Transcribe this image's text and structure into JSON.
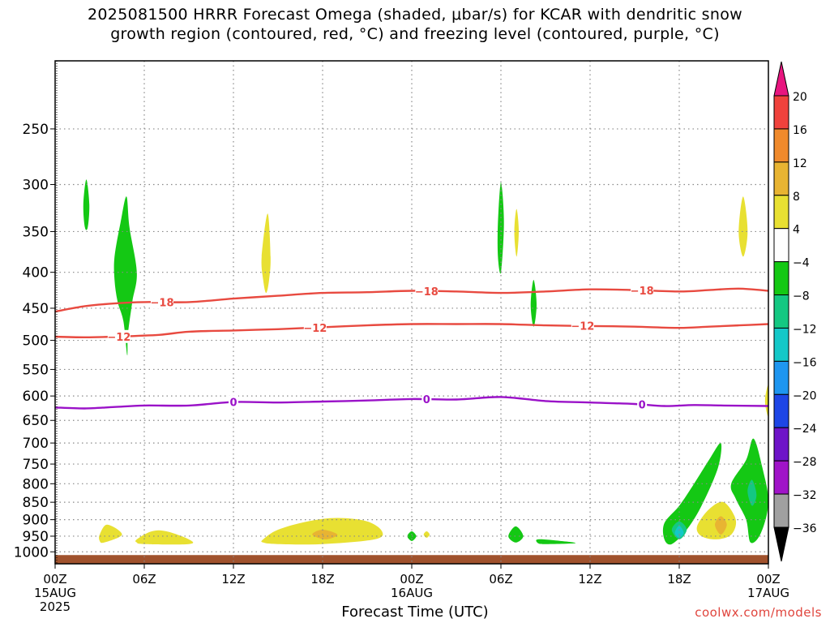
{
  "header": {
    "title_line1": "2025081500 HRRR Forecast Omega (shaded, μbar/s) for KCAR with dendritic snow",
    "title_line2": "growth region (contoured, red, °C) and freezing level (contoured, purple, °C)"
  },
  "footer": {
    "xlabel": "Forecast Time (UTC)",
    "credit": "coolwx.com/models"
  },
  "chart_data": {
    "type": "heatmap",
    "x_range_hours": [
      0,
      48
    ],
    "y_axis": {
      "scale": "pressure",
      "unit": "hPa",
      "ticks": [
        250,
        300,
        350,
        400,
        450,
        500,
        550,
        600,
        650,
        700,
        750,
        800,
        850,
        900,
        950,
        1000
      ],
      "range": [
        200,
        1040
      ]
    },
    "x_ticks": [
      {
        "hour": 0,
        "line1": "00Z",
        "line2": "15AUG",
        "line3": "2025"
      },
      {
        "hour": 6,
        "line1": "06Z",
        "line2": "",
        "line3": ""
      },
      {
        "hour": 12,
        "line1": "12Z",
        "line2": "",
        "line3": ""
      },
      {
        "hour": 18,
        "line1": "18Z",
        "line2": "",
        "line3": ""
      },
      {
        "hour": 24,
        "line1": "00Z",
        "line2": "16AUG",
        "line3": ""
      },
      {
        "hour": 30,
        "line1": "06Z",
        "line2": "",
        "line3": ""
      },
      {
        "hour": 36,
        "line1": "12Z",
        "line2": "",
        "line3": ""
      },
      {
        "hour": 42,
        "line1": "18Z",
        "line2": "",
        "line3": ""
      },
      {
        "hour": 48,
        "line1": "00Z",
        "line2": "17AUG",
        "line3": ""
      }
    ],
    "colorbar": {
      "labels": [
        "20",
        "16",
        "12",
        "8",
        "4",
        "−4",
        "−8",
        "−12",
        "−16",
        "−20",
        "−24",
        "−28",
        "−32",
        "−36"
      ],
      "top_arrow_color": "#e8157f",
      "bottom_arrow_color": "#000000",
      "bins": [
        {
          "from": 16,
          "to": 20,
          "color": "#f0423c"
        },
        {
          "from": 12,
          "to": 16,
          "color": "#f08a2c"
        },
        {
          "from": 8,
          "to": 12,
          "color": "#e8b432"
        },
        {
          "from": 4,
          "to": 8,
          "color": "#e8e032"
        },
        {
          "from": -4,
          "to": 4,
          "color": "#ffffff"
        },
        {
          "from": -8,
          "to": -4,
          "color": "#14c814"
        },
        {
          "from": -12,
          "to": -8,
          "color": "#14c882"
        },
        {
          "from": -16,
          "to": -12,
          "color": "#14c8c8"
        },
        {
          "from": -20,
          "to": -16,
          "color": "#1e96f0"
        },
        {
          "from": -24,
          "to": -20,
          "color": "#1e46e6"
        },
        {
          "from": -28,
          "to": -24,
          "color": "#6e14c8"
        },
        {
          "from": -32,
          "to": -28,
          "color": "#a014c8"
        },
        {
          "from": -36,
          "to": -32,
          "color": "#a0a0a0"
        }
      ]
    },
    "contours": [
      {
        "label": "−18",
        "color": "#e84a40",
        "label_hours": [
          7.2,
          25,
          39.5
        ],
        "points": [
          [
            0,
            455
          ],
          [
            2,
            447
          ],
          [
            4,
            443
          ],
          [
            6,
            441
          ],
          [
            9,
            441
          ],
          [
            12,
            436
          ],
          [
            15,
            432
          ],
          [
            18,
            428
          ],
          [
            21,
            427
          ],
          [
            24,
            425
          ],
          [
            27,
            426
          ],
          [
            30,
            428
          ],
          [
            33,
            426
          ],
          [
            36,
            423
          ],
          [
            39,
            424
          ],
          [
            42,
            426
          ],
          [
            44,
            424
          ],
          [
            46,
            422
          ],
          [
            48,
            425
          ]
        ]
      },
      {
        "label": "−12",
        "color": "#e84a40",
        "label_hours": [
          4.3,
          17.5,
          35.5
        ],
        "points": [
          [
            0,
            494
          ],
          [
            2,
            495
          ],
          [
            4,
            494
          ],
          [
            7,
            491
          ],
          [
            9,
            486
          ],
          [
            12,
            484
          ],
          [
            15,
            482
          ],
          [
            18,
            479
          ],
          [
            21,
            476
          ],
          [
            24,
            474
          ],
          [
            27,
            474
          ],
          [
            30,
            474
          ],
          [
            33,
            476
          ],
          [
            36,
            477
          ],
          [
            39,
            478
          ],
          [
            42,
            480
          ],
          [
            44,
            478
          ],
          [
            46,
            476
          ],
          [
            48,
            474
          ]
        ]
      },
      {
        "label": "0",
        "color": "#9a12c8",
        "label_hours": [
          12,
          25,
          39.5
        ],
        "points": [
          [
            0,
            623
          ],
          [
            2,
            625
          ],
          [
            4,
            622
          ],
          [
            6,
            619
          ],
          [
            9,
            619
          ],
          [
            12,
            612
          ],
          [
            15,
            613
          ],
          [
            18,
            611
          ],
          [
            21,
            609
          ],
          [
            24,
            606
          ],
          [
            27,
            607
          ],
          [
            30,
            602
          ],
          [
            33,
            610
          ],
          [
            36,
            613
          ],
          [
            39,
            616
          ],
          [
            41,
            620
          ],
          [
            43,
            618
          ],
          [
            45,
            619
          ],
          [
            48,
            620
          ]
        ]
      }
    ],
    "omega_regions": [
      {
        "value": -6,
        "color": "#14c814",
        "points": [
          [
            1.9,
            320
          ],
          [
            2.1,
            295
          ],
          [
            2.3,
            320
          ],
          [
            2.2,
            345
          ],
          [
            2.0,
            345
          ]
        ]
      },
      {
        "value": -6,
        "color": "#14c814",
        "points": [
          [
            4.0,
            380
          ],
          [
            4.4,
            340
          ],
          [
            4.8,
            312
          ],
          [
            5.0,
            345
          ],
          [
            5.5,
            400
          ],
          [
            5.2,
            440
          ],
          [
            4.9,
            490
          ],
          [
            4.85,
            525
          ],
          [
            4.6,
            470
          ],
          [
            4.2,
            440
          ],
          [
            4.0,
            410
          ]
        ]
      },
      {
        "value": 6,
        "color": "#e8e032",
        "points": [
          [
            13.9,
            380
          ],
          [
            14.3,
            330
          ],
          [
            14.5,
            380
          ],
          [
            14.4,
            410
          ],
          [
            14.2,
            428
          ],
          [
            14.0,
            410
          ]
        ]
      },
      {
        "value": -6,
        "color": "#14c814",
        "points": [
          [
            29.8,
            340
          ],
          [
            30.0,
            298
          ],
          [
            30.2,
            340
          ],
          [
            30.0,
            400
          ],
          [
            29.8,
            380
          ]
        ]
      },
      {
        "value": 6,
        "color": "#e8e032",
        "points": [
          [
            30.9,
            350
          ],
          [
            31.05,
            325
          ],
          [
            31.2,
            350
          ],
          [
            31.05,
            380
          ]
        ]
      },
      {
        "value": -6,
        "color": "#14c814",
        "points": [
          [
            32.0,
            445
          ],
          [
            32.2,
            410
          ],
          [
            32.4,
            445
          ],
          [
            32.2,
            478
          ]
        ]
      },
      {
        "value": 6,
        "color": "#e8e032",
        "points": [
          [
            46.0,
            350
          ],
          [
            46.3,
            312
          ],
          [
            46.6,
            350
          ],
          [
            46.3,
            380
          ]
        ]
      },
      {
        "value": 6,
        "color": "#e8e032",
        "points": [
          [
            47.8,
            600
          ],
          [
            48.0,
            580
          ],
          [
            48.0,
            640
          ],
          [
            47.8,
            620
          ]
        ]
      },
      {
        "value": 6,
        "color": "#e8e032",
        "points": [
          [
            3.0,
            945
          ],
          [
            3.5,
            915
          ],
          [
            4.5,
            945
          ],
          [
            3.3,
            970
          ],
          [
            3.0,
            965
          ]
        ]
      },
      {
        "value": 6,
        "color": "#e8e032",
        "points": [
          [
            5.5,
            960
          ],
          [
            6.5,
            935
          ],
          [
            7.5,
            935
          ],
          [
            9,
            960
          ],
          [
            9,
            975
          ],
          [
            6,
            975
          ],
          [
            5.5,
            970
          ]
        ]
      },
      {
        "value": 6,
        "color": "#e8e032",
        "points": [
          [
            14,
            960
          ],
          [
            15,
            930
          ],
          [
            17,
            905
          ],
          [
            19,
            895
          ],
          [
            21,
            905
          ],
          [
            22,
            935
          ],
          [
            21.5,
            960
          ],
          [
            18,
            975
          ],
          [
            15,
            975
          ],
          [
            14,
            970
          ]
        ]
      },
      {
        "value": 10,
        "color": "#e8b432",
        "points": [
          [
            17.3,
            945
          ],
          [
            18.0,
            930
          ],
          [
            19.0,
            945
          ],
          [
            18.2,
            960
          ]
        ]
      },
      {
        "value": -6,
        "color": "#14c814",
        "points": [
          [
            23.7,
            950
          ],
          [
            24.0,
            935
          ],
          [
            24.3,
            950
          ],
          [
            24.0,
            965
          ]
        ]
      },
      {
        "value": 6,
        "color": "#e8e032",
        "points": [
          [
            24.8,
            945
          ],
          [
            25.0,
            935
          ],
          [
            25.2,
            945
          ],
          [
            25.0,
            955
          ]
        ]
      },
      {
        "value": -6,
        "color": "#14c814",
        "points": [
          [
            30.5,
            950
          ],
          [
            31.0,
            920
          ],
          [
            31.5,
            950
          ],
          [
            31.0,
            970
          ]
        ]
      },
      {
        "value": -6,
        "color": "#14c814",
        "points": [
          [
            32.5,
            960
          ],
          [
            34,
            965
          ],
          [
            35,
            972
          ],
          [
            33,
            975
          ],
          [
            32.5,
            972
          ]
        ]
      },
      {
        "value": -6,
        "color": "#14c814",
        "points": [
          [
            41,
            910
          ],
          [
            42,
            860
          ],
          [
            43,
            800
          ],
          [
            44,
            740
          ],
          [
            44.8,
            700
          ],
          [
            44.6,
            760
          ],
          [
            43.5,
            860
          ],
          [
            42.5,
            930
          ],
          [
            41.5,
            975
          ],
          [
            41,
            960
          ]
        ]
      },
      {
        "value": -10,
        "color": "#14c882",
        "points": [
          [
            41.5,
            930
          ],
          [
            42,
            905
          ],
          [
            42.5,
            930
          ],
          [
            42,
            960
          ]
        ]
      },
      {
        "value": -14,
        "color": "#14c8c8",
        "points": [
          [
            41.7,
            940
          ],
          [
            42,
            918
          ],
          [
            42.3,
            940
          ],
          [
            42,
            955
          ]
        ]
      },
      {
        "value": 6,
        "color": "#e8e032",
        "points": [
          [
            43.2,
            920
          ],
          [
            44,
            870
          ],
          [
            45,
            850
          ],
          [
            45.8,
            900
          ],
          [
            45.5,
            945
          ],
          [
            44.5,
            960
          ],
          [
            43.5,
            950
          ]
        ]
      },
      {
        "value": 10,
        "color": "#e8b432",
        "points": [
          [
            44.4,
            915
          ],
          [
            44.8,
            890
          ],
          [
            45.2,
            915
          ],
          [
            44.8,
            945
          ]
        ]
      },
      {
        "value": -6,
        "color": "#14c814",
        "points": [
          [
            45.5,
            800
          ],
          [
            46.5,
            740
          ],
          [
            47,
            690
          ],
          [
            47.6,
            760
          ],
          [
            48,
            850
          ],
          [
            47.5,
            940
          ],
          [
            46.8,
            970
          ],
          [
            46.5,
            900
          ],
          [
            45.8,
            840
          ]
        ]
      },
      {
        "value": -10,
        "color": "#14c882",
        "points": [
          [
            46.6,
            820
          ],
          [
            46.9,
            790
          ],
          [
            47.2,
            830
          ],
          [
            46.9,
            860
          ]
        ]
      }
    ],
    "ground_color": "#a0522d",
    "grid": true,
    "grid_hours": [
      6,
      12,
      18,
      24,
      30,
      36,
      42
    ],
    "grid_levels": [
      250,
      300,
      350,
      400,
      450,
      500,
      550,
      600,
      650,
      700,
      750,
      800,
      850,
      900,
      950,
      1000
    ]
  }
}
